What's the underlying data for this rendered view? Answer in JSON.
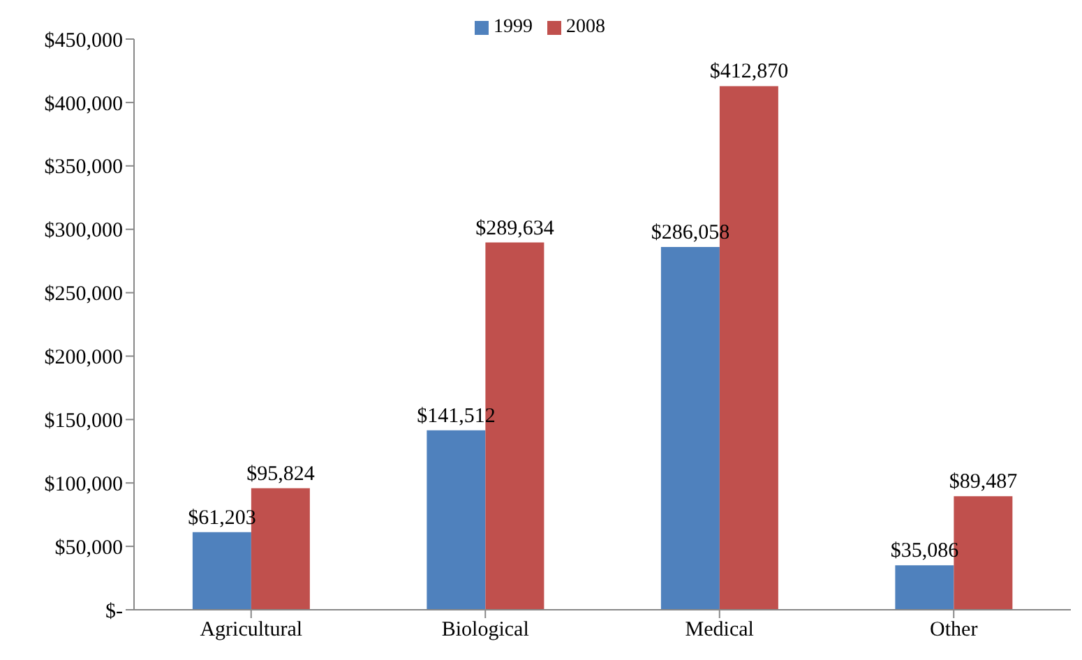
{
  "chart_data": {
    "type": "bar",
    "categories": [
      "Agricultural",
      "Biological",
      "Medical",
      "Other"
    ],
    "series": [
      {
        "name": "1999",
        "color": "#4f81bd",
        "values": [
          61203,
          141512,
          286058,
          35086
        ],
        "value_labels": [
          "$61,203",
          "$141,512",
          "$286,058",
          "$35,086"
        ]
      },
      {
        "name": "2008",
        "color": "#c0504d",
        "values": [
          95824,
          289634,
          412870,
          89487
        ],
        "value_labels": [
          "$95,824",
          "$289,634",
          "$412,870",
          "$89,487"
        ]
      }
    ],
    "ylim": [
      0,
      450000
    ],
    "yticks": [
      {
        "value": 0,
        "label": "$-"
      },
      {
        "value": 50000,
        "label": "$50,000"
      },
      {
        "value": 100000,
        "label": "$100,000"
      },
      {
        "value": 150000,
        "label": "$150,000"
      },
      {
        "value": 200000,
        "label": "$200,000"
      },
      {
        "value": 250000,
        "label": "$250,000"
      },
      {
        "value": 300000,
        "label": "$300,000"
      },
      {
        "value": 350000,
        "label": "$350,000"
      },
      {
        "value": 400000,
        "label": "$400,000"
      },
      {
        "value": 450000,
        "label": "$450,000"
      }
    ],
    "grid": false,
    "legend": "top"
  }
}
